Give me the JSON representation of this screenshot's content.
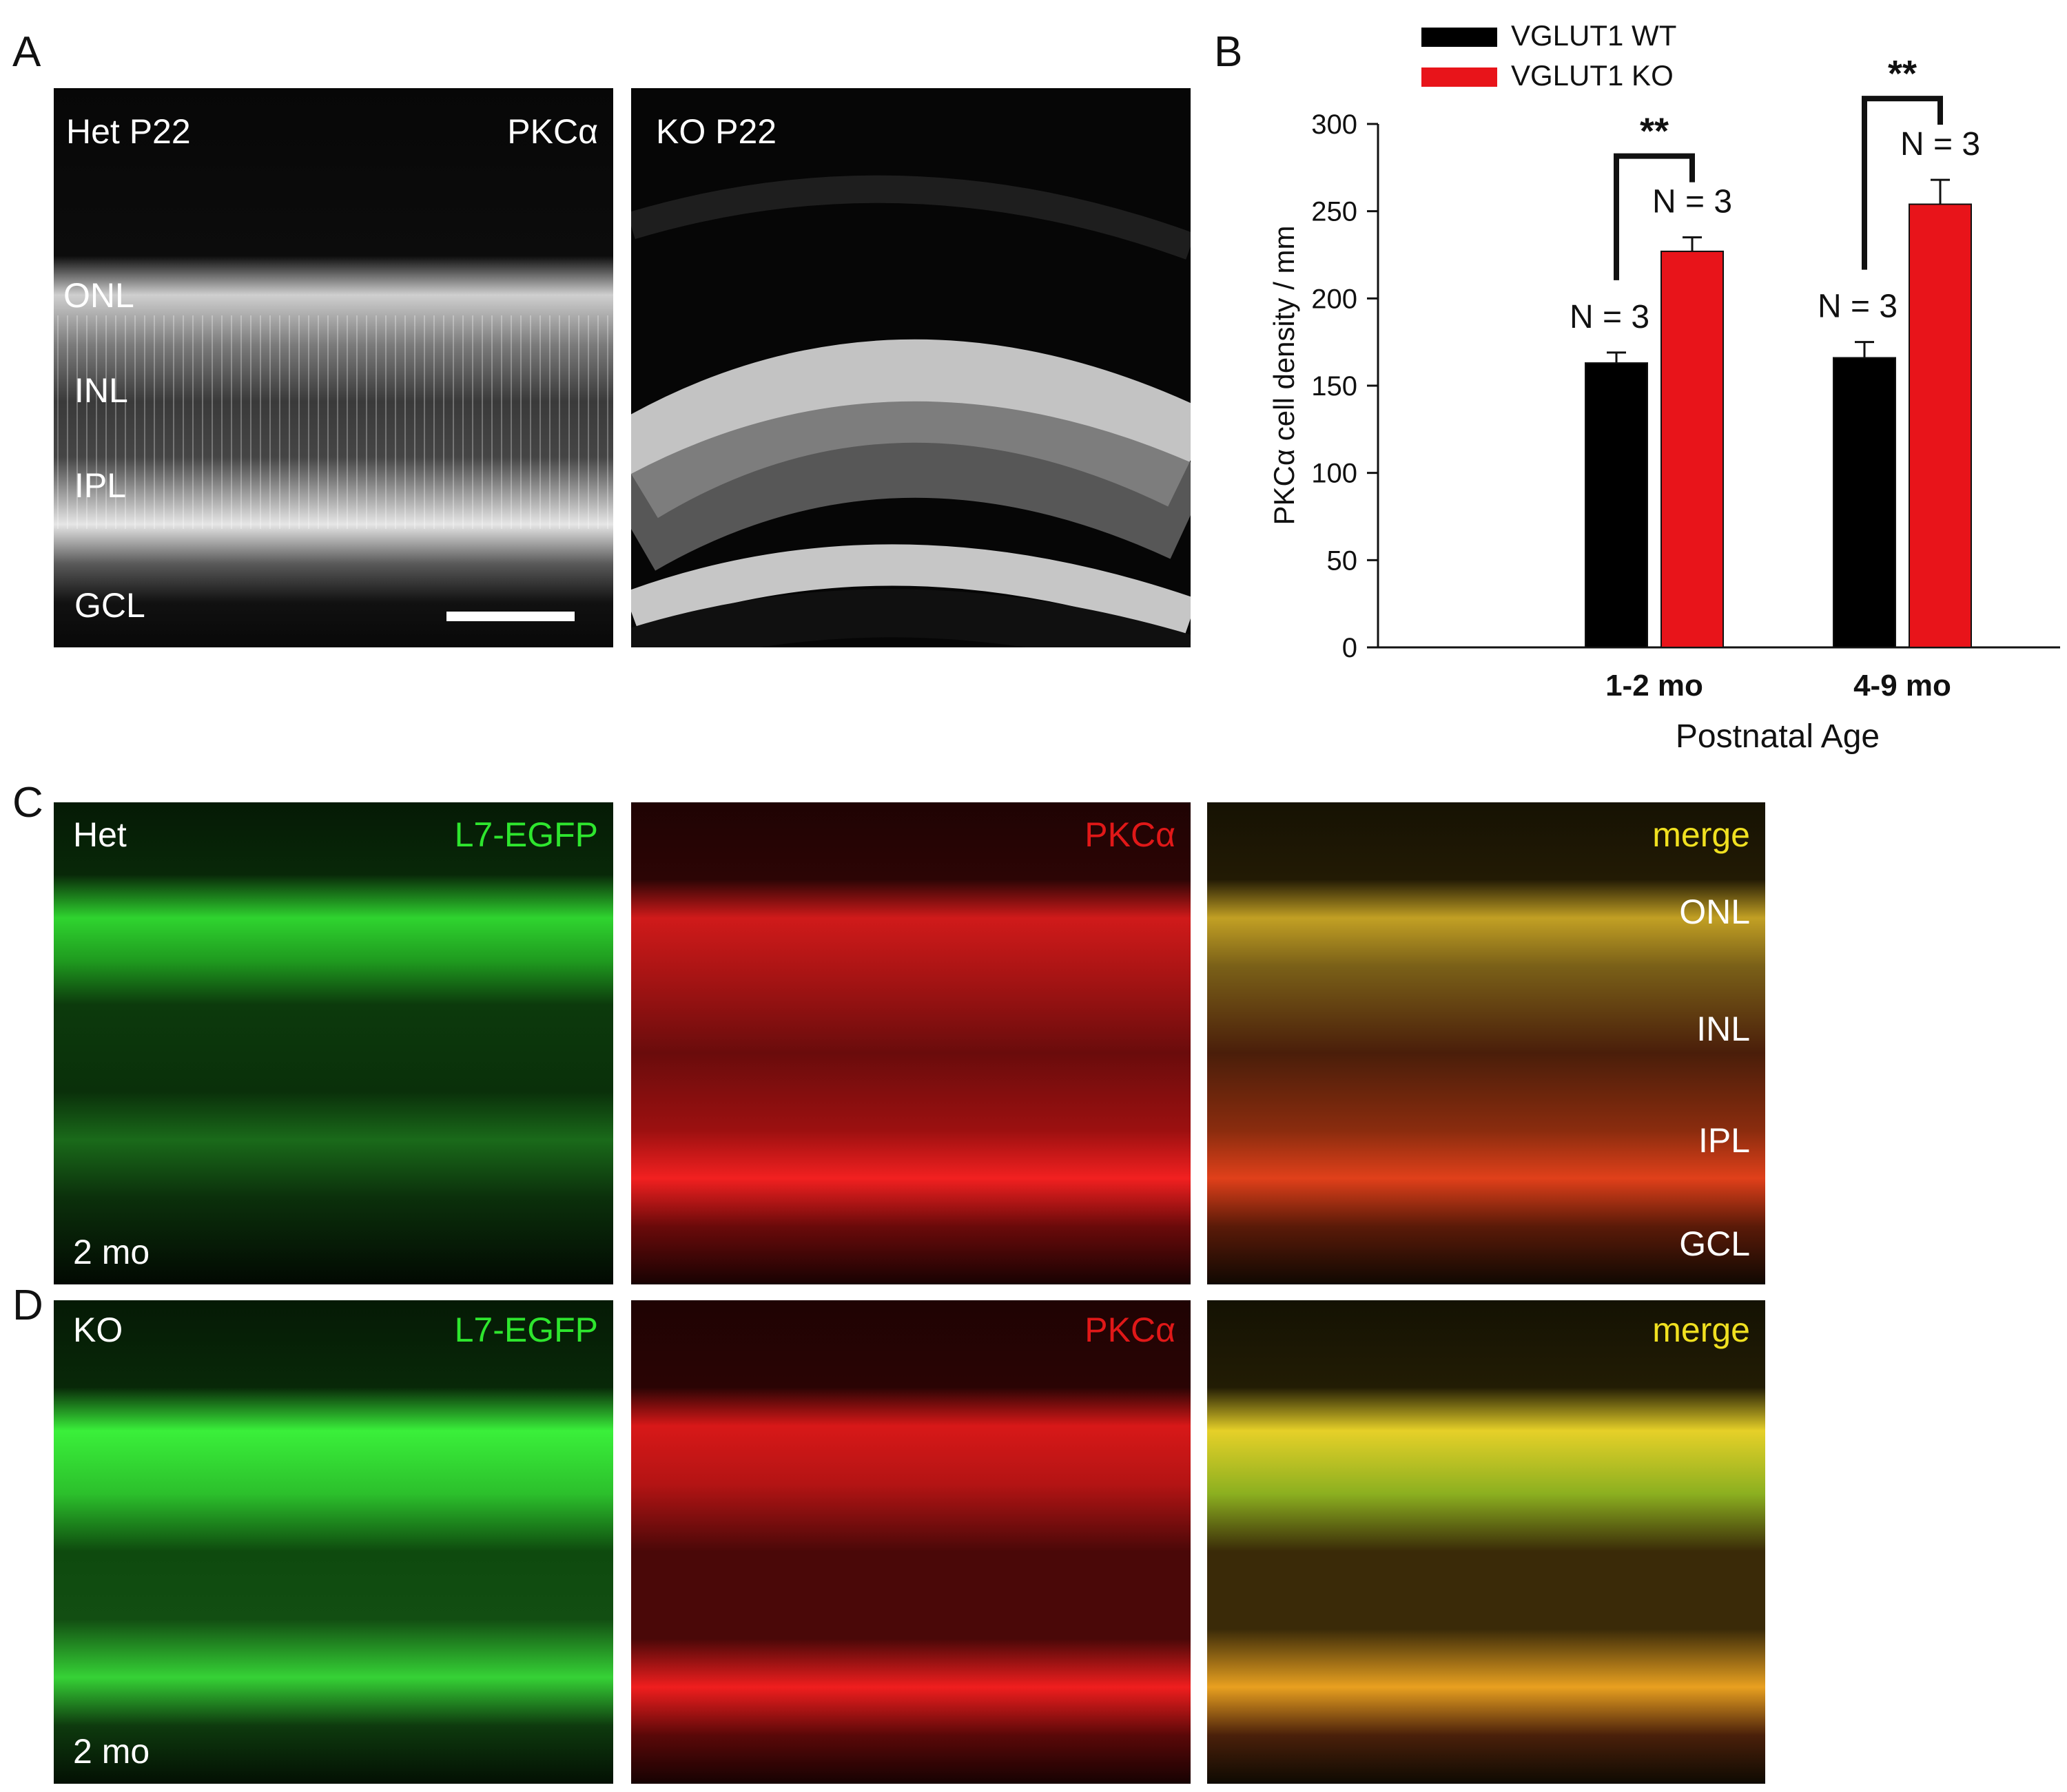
{
  "panel_letters": [
    "A",
    "B",
    "C",
    "D"
  ],
  "panelA": {
    "left": {
      "label_top_left": "Het  P22",
      "label_top_right": "PKCα",
      "layers": [
        "ONL",
        "INL",
        "IPL",
        "GCL"
      ]
    },
    "right": {
      "label_top_left": "KO P22"
    }
  },
  "panelC": {
    "green": {
      "label_top_left": "Het",
      "label_top_right": "L7-EGFP",
      "label_bottom_left": "2 mo"
    },
    "red": {
      "label_top_right": "PKCα"
    },
    "merge": {
      "label_top_right": "merge",
      "layers": [
        "ONL",
        "INL",
        "IPL",
        "GCL"
      ]
    }
  },
  "panelD": {
    "green": {
      "label_top_left": "KO",
      "label_top_right": "L7-EGFP",
      "label_bottom_left": "2 mo"
    },
    "red": {
      "label_top_right": "PKCα"
    },
    "merge": {
      "label_top_right": "merge"
    }
  },
  "colors": {
    "green_label": "#2ee62e",
    "red_label": "#e01818",
    "merge_label": "#f0e020",
    "wt_bar": "#000000",
    "ko_bar": "#e8141a"
  },
  "chart_data": {
    "type": "bar",
    "categories": [
      "1-2 mo",
      "4-9 mo"
    ],
    "series": [
      {
        "name": "VGLUT1 WT",
        "values": [
          163,
          166
        ],
        "errors": [
          6,
          9
        ],
        "n_labels": [
          "N = 3",
          "N = 3"
        ]
      },
      {
        "name": "VGLUT1 KO",
        "values": [
          227,
          254
        ],
        "errors": [
          8,
          14
        ],
        "n_labels": [
          "N = 3",
          "N = 3"
        ]
      }
    ],
    "significance": [
      "**",
      "**"
    ],
    "xlabel": "Postnatal Age",
    "ylabel": "PKCα cell density / mm",
    "ylim": [
      0,
      300
    ],
    "yticks": [
      0,
      50,
      100,
      150,
      200,
      250,
      300
    ],
    "legend_position": "top-left",
    "grid": false
  }
}
